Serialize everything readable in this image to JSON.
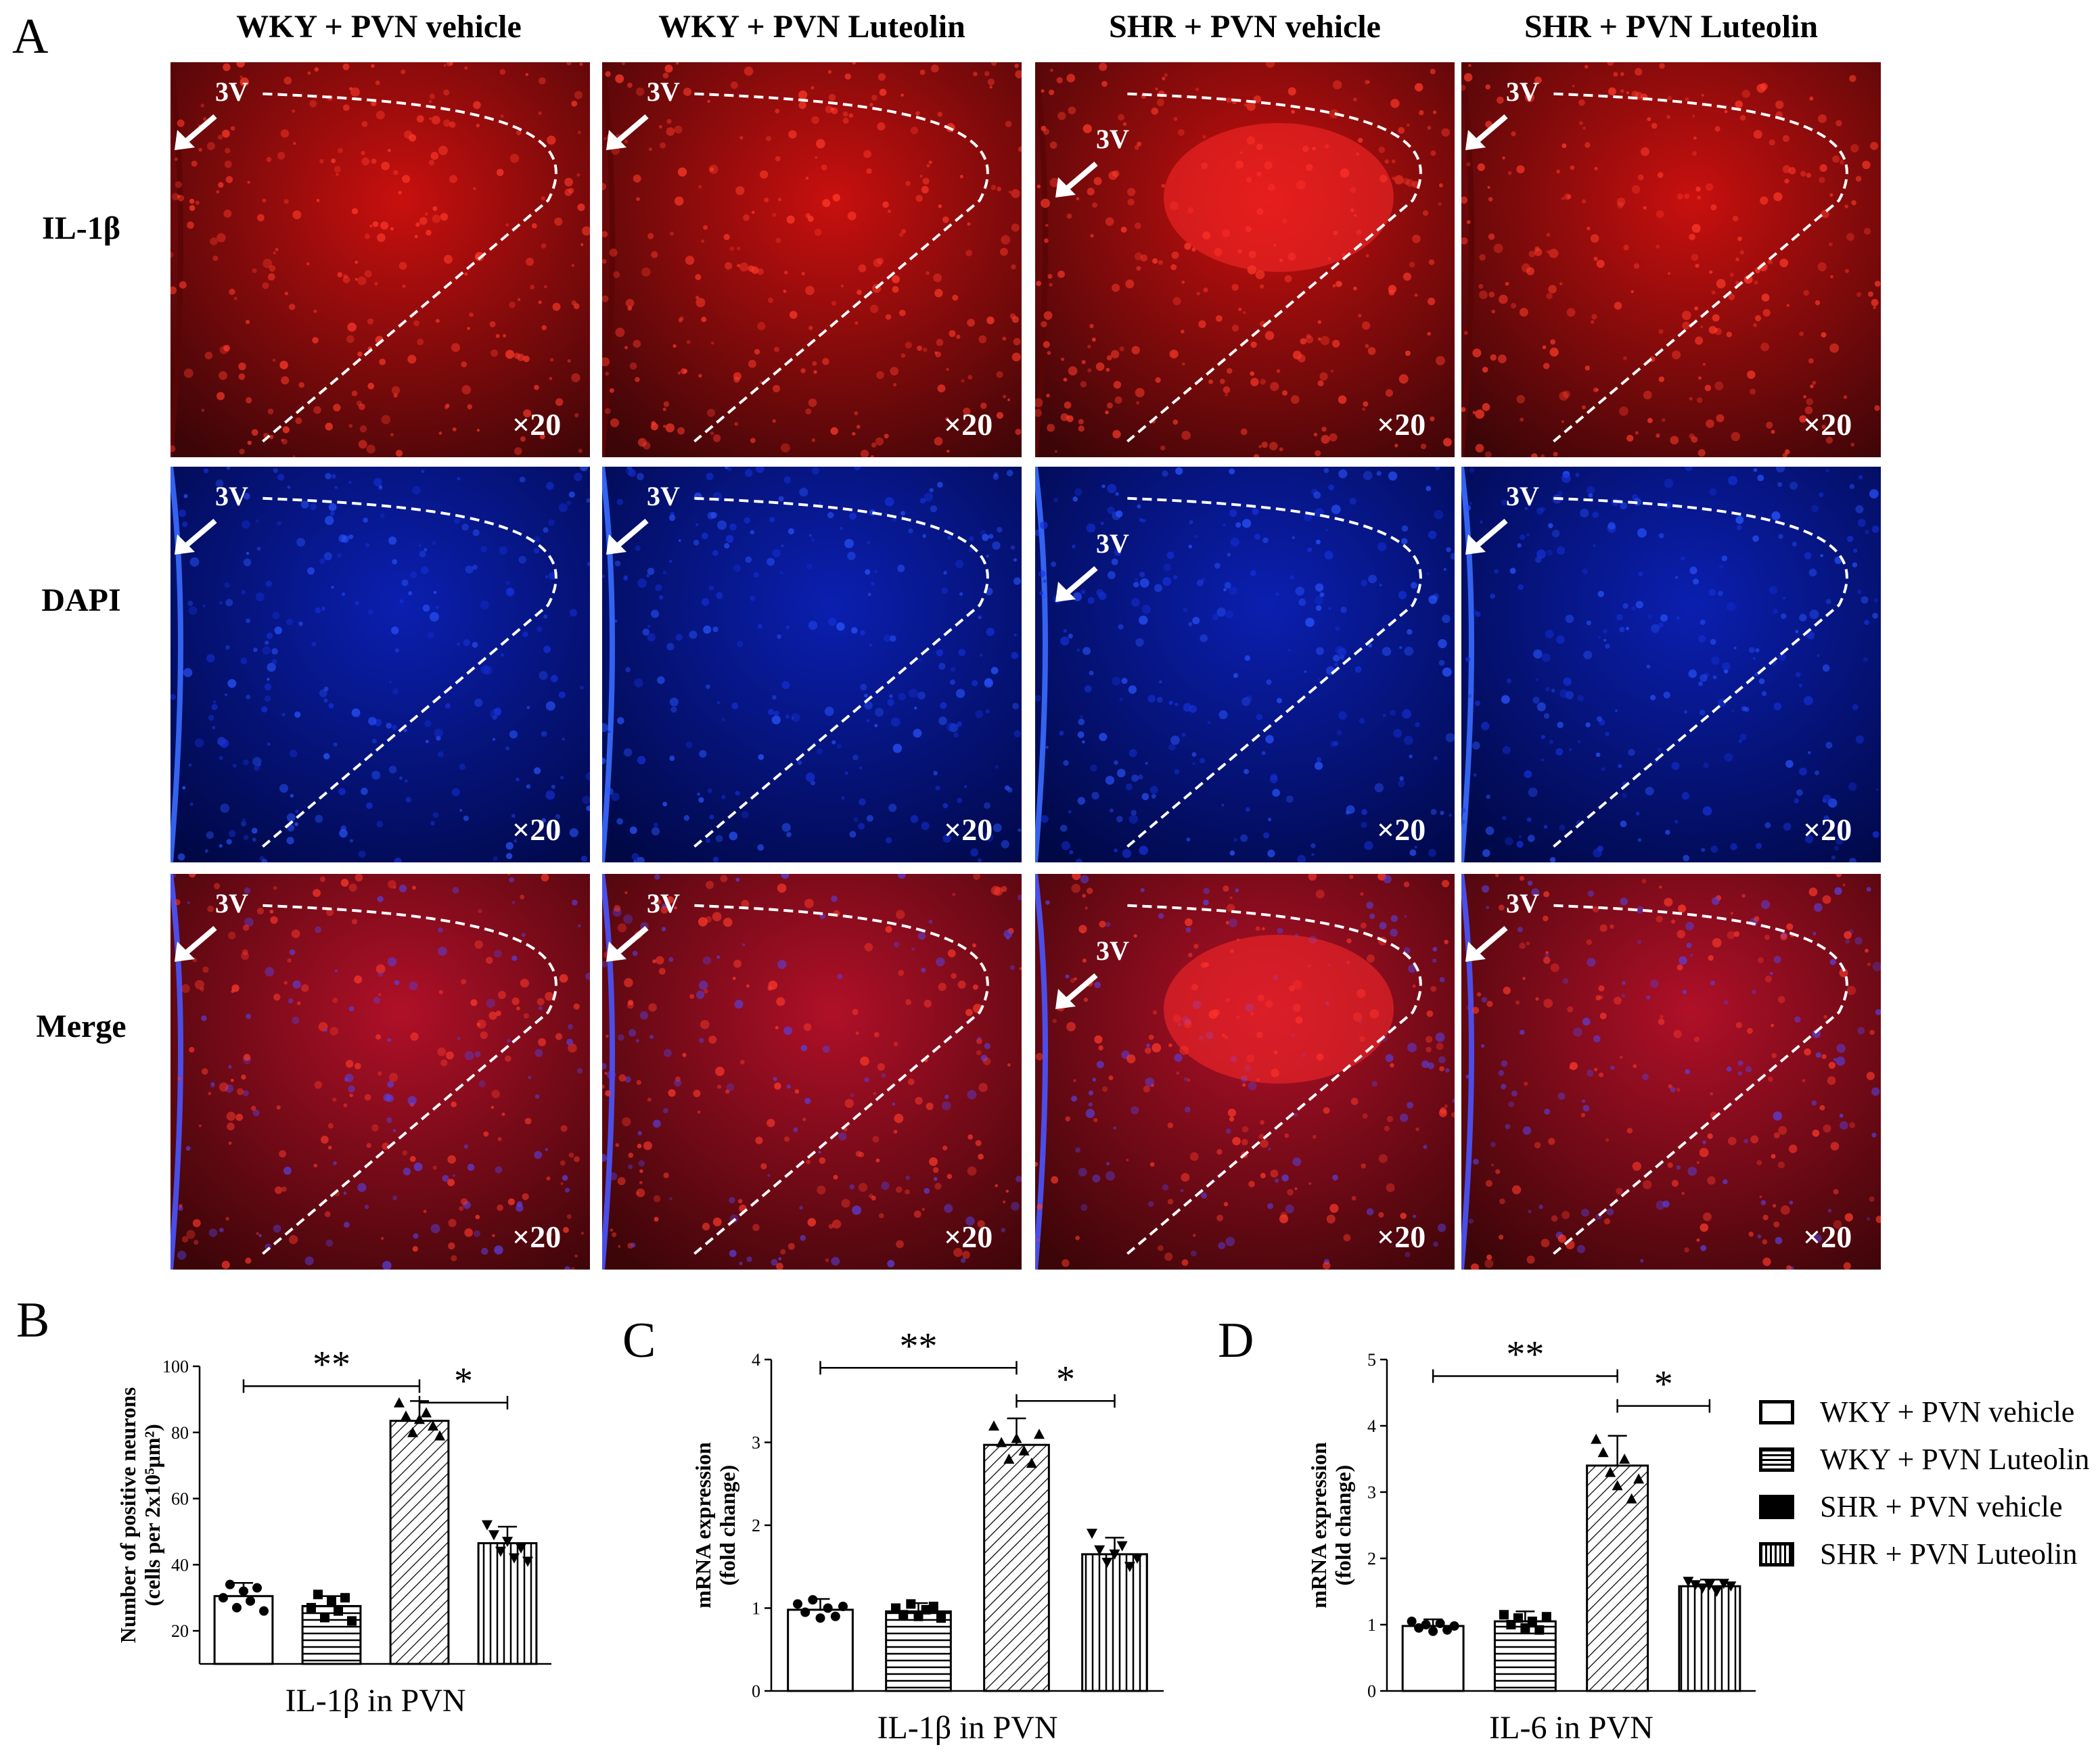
{
  "figure": {
    "panel_letters": [
      "A",
      "B",
      "C",
      "D"
    ],
    "columns": [
      "WKY + PVN vehicle",
      "WKY + PVN Luteolin",
      "SHR + PVN vehicle",
      "SHR + PVN Luteolin"
    ],
    "rows": [
      "IL-1β",
      "DAPI",
      "Merge"
    ],
    "ventricle_label": "3V",
    "magnification": "×20",
    "colors": {
      "il1b": "#c8100e",
      "dapi": "#0b1fb0",
      "merge": "#b01028",
      "dashed": "#ffffff"
    }
  },
  "legend": {
    "items": [
      {
        "label": "WKY + PVN vehicle",
        "pattern": "open"
      },
      {
        "label": "WKY + PVN Luteolin",
        "pattern": "horizontal"
      },
      {
        "label": "SHR +  PVN vehicle",
        "pattern": "solid"
      },
      {
        "label": "SHR +  PVN Luteolin",
        "pattern": "vertical"
      }
    ]
  },
  "chart_data": [
    {
      "id": "B",
      "type": "bar",
      "categories": [
        "WKY + PVN vehicle",
        "WKY + PVN Luteolin",
        "SHR + PVN vehicle",
        "SHR + PVN Luteolin"
      ],
      "values": [
        30.5,
        27.5,
        83.5,
        46.5
      ],
      "errors": [
        4,
        3,
        6,
        5
      ],
      "ylim": [
        10,
        100
      ],
      "yticks": [
        20,
        40,
        60,
        80,
        100
      ],
      "ylabel": "Number of positive neurons",
      "ylabel2": "(cells per 2x10⁵μm²)",
      "xlabel": "IL-1β in PVN",
      "points": [
        [
          30,
          34,
          27,
          32,
          29,
          33,
          26
        ],
        [
          27,
          31,
          24,
          29,
          26,
          30,
          23
        ],
        [
          89,
          85,
          80,
          84,
          86,
          82,
          79
        ],
        [
          52,
          49,
          44,
          47,
          42,
          45,
          41
        ]
      ],
      "markers": [
        "circle",
        "square",
        "triangle-up",
        "triangle-down"
      ],
      "significance": [
        {
          "from": 0,
          "to": 2,
          "y": 94,
          "text": "**"
        },
        {
          "from": 2,
          "to": 3,
          "y": 89,
          "text": "*"
        }
      ]
    },
    {
      "id": "C",
      "type": "bar",
      "categories": [
        "WKY + PVN vehicle",
        "WKY + PVN Luteolin",
        "SHR + PVN vehicle",
        "SHR + PVN Luteolin"
      ],
      "values": [
        0.98,
        0.96,
        2.97,
        1.65
      ],
      "errors": [
        0.13,
        0.1,
        0.32,
        0.2
      ],
      "ylim": [
        0,
        4
      ],
      "yticks": [
        0,
        1,
        2,
        3,
        4
      ],
      "ylabel": "mRNA expression",
      "ylabel2": "(fold change)",
      "xlabel": "IL-1β in PVN",
      "points": [
        [
          1.05,
          0.95,
          1.1,
          0.88,
          1.0,
          0.9,
          1.02
        ],
        [
          1.0,
          0.92,
          1.05,
          0.9,
          0.98,
          1.02,
          0.88
        ],
        [
          3.2,
          3.0,
          2.8,
          3.05,
          2.9,
          2.75,
          3.1
        ],
        [
          1.9,
          1.7,
          1.55,
          1.65,
          1.75,
          1.5,
          1.6
        ]
      ],
      "markers": [
        "circle",
        "square",
        "triangle-up",
        "triangle-down"
      ],
      "significance": [
        {
          "from": 0,
          "to": 2,
          "y": 3.9,
          "text": "**"
        },
        {
          "from": 2,
          "to": 3,
          "y": 3.5,
          "text": "*"
        }
      ]
    },
    {
      "id": "D",
      "type": "bar",
      "categories": [
        "WKY + PVN vehicle",
        "WKY + PVN Luteolin",
        "SHR + PVN vehicle",
        "SHR + PVN Luteolin"
      ],
      "values": [
        0.98,
        1.05,
        3.4,
        1.58
      ],
      "errors": [
        0.1,
        0.15,
        0.45,
        0.1
      ],
      "ylim": [
        0,
        5
      ],
      "yticks": [
        0,
        1,
        2,
        3,
        4,
        5
      ],
      "ylabel": "mRNA expression",
      "ylabel2": "(fold change)",
      "xlabel": "IL-6 in PVN",
      "points": [
        [
          1.05,
          0.95,
          1.0,
          0.9,
          1.02,
          0.92,
          0.98
        ],
        [
          1.15,
          1.0,
          1.1,
          0.95,
          1.05,
          0.92,
          1.12
        ],
        [
          3.8,
          3.6,
          3.3,
          3.1,
          3.5,
          2.9,
          3.2
        ],
        [
          1.65,
          1.6,
          1.55,
          1.6,
          1.5,
          1.62,
          1.58
        ]
      ],
      "markers": [
        "circle",
        "square",
        "triangle-up",
        "triangle-down"
      ],
      "significance": [
        {
          "from": 0,
          "to": 2,
          "y": 4.75,
          "text": "**"
        },
        {
          "from": 2,
          "to": 3,
          "y": 4.3,
          "text": "*"
        }
      ]
    }
  ]
}
